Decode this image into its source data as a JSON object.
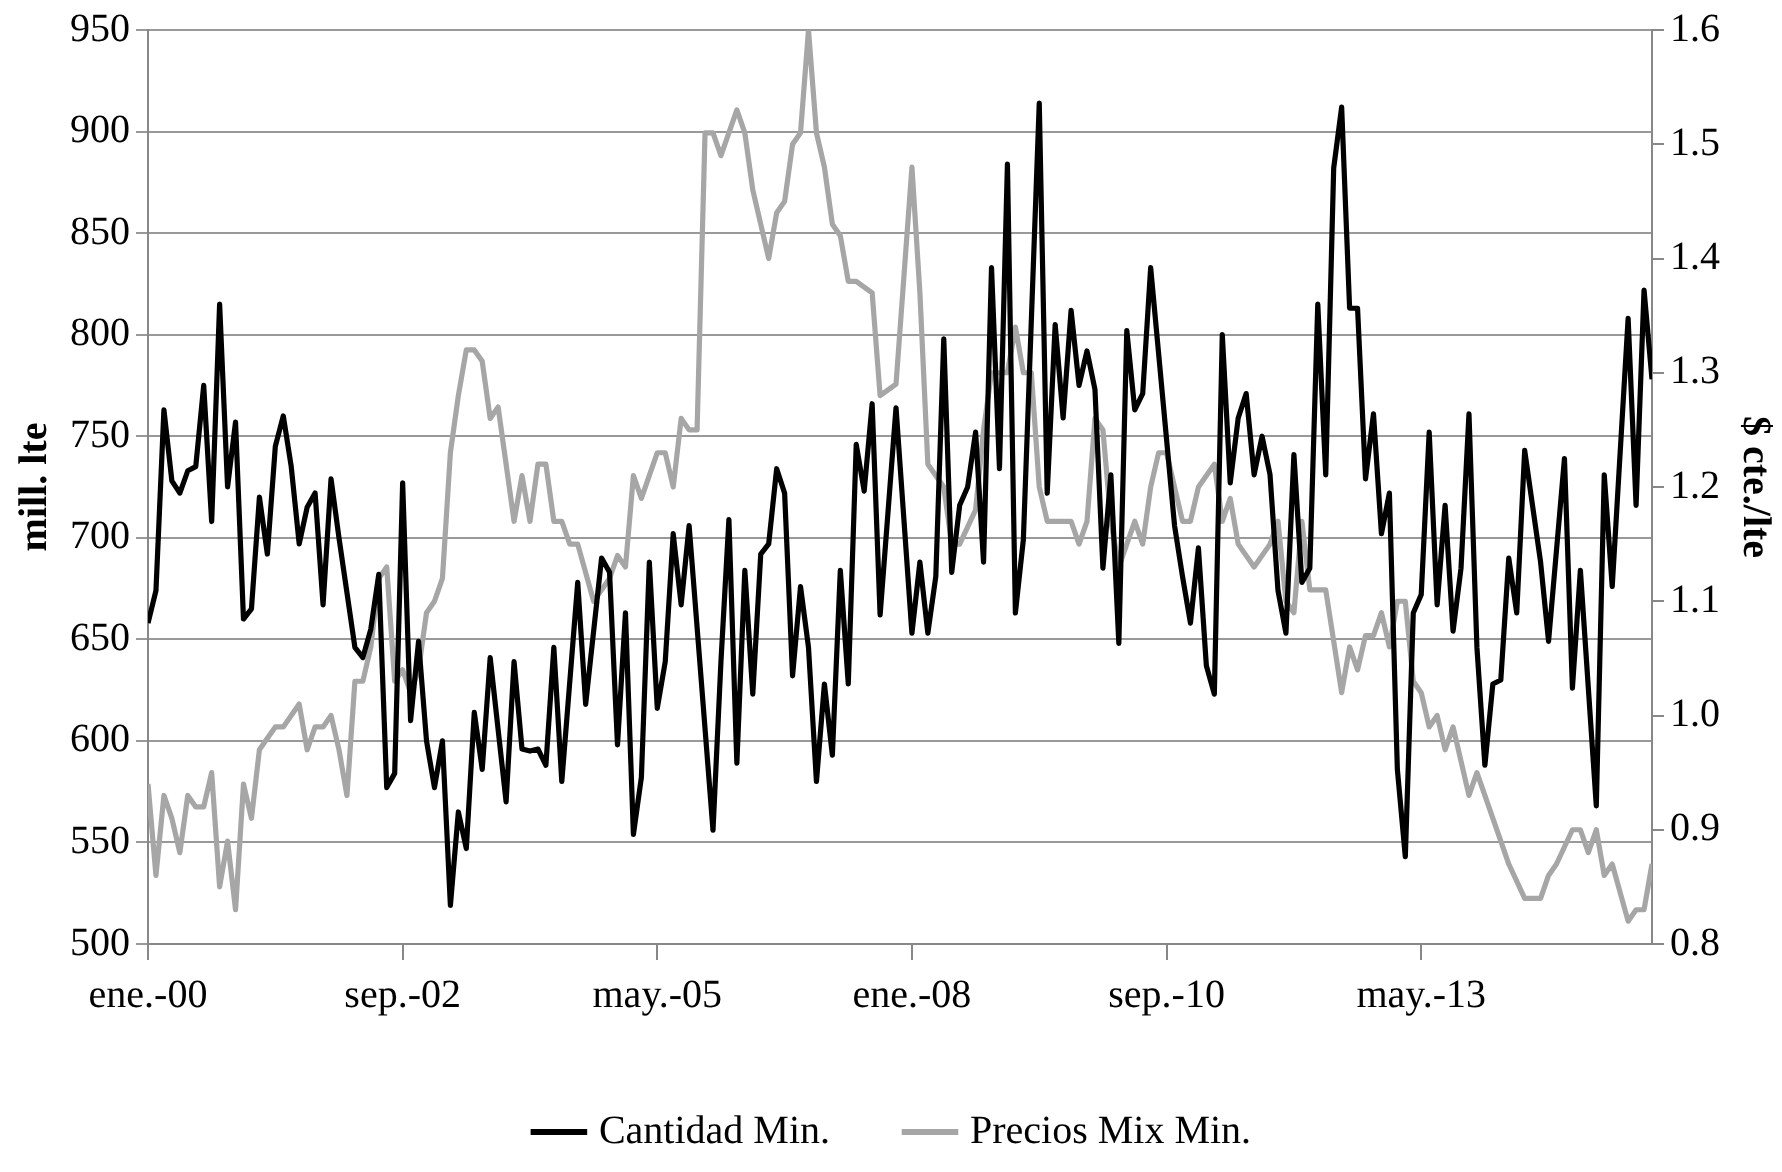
{
  "chart_data": {
    "type": "line",
    "ylabel": "mill. lte",
    "y2label": "$ cte./lte",
    "xlim": [
      "2000-01",
      "2015-10"
    ],
    "xticks": [
      {
        "value": "2000-01",
        "label": "ene.-00"
      },
      {
        "value": "2002-09",
        "label": "sep.-02"
      },
      {
        "value": "2005-05",
        "label": "may.-05"
      },
      {
        "value": "2008-01",
        "label": "ene.-08"
      },
      {
        "value": "2010-09",
        "label": "sep.-10"
      },
      {
        "value": "2013-05",
        "label": "may.-13"
      }
    ],
    "ylim": [
      500,
      950
    ],
    "yticks": [
      500,
      550,
      600,
      650,
      700,
      750,
      800,
      850,
      900,
      950
    ],
    "y2lim": [
      0.8,
      1.6
    ],
    "y2ticks": [
      0.8,
      0.9,
      {
        "value": 1,
        "label": "1.0"
      },
      1.1,
      1.2,
      1.3,
      1.4,
      1.5,
      1.6
    ],
    "grid": "y",
    "legend": "bottom",
    "series": [
      {
        "name": "Cantidad Min.",
        "color": "#000000",
        "x": [
          "2000-01",
          "2000-02",
          "2000-03",
          "2000-04",
          "2000-05",
          "2000-06",
          "2000-07",
          "2000-08",
          "2000-09",
          "2000-10",
          "2000-11",
          "2000-12",
          "2001-01",
          "2001-02",
          "2001-03",
          "2001-04",
          "2001-05",
          "2001-06",
          "2001-07",
          "2001-08",
          "2001-09",
          "2001-10",
          "2001-11",
          "2001-12",
          "2002-01",
          "2002-02",
          "2002-03",
          "2002-04",
          "2002-05",
          "2002-06",
          "2002-07",
          "2002-08",
          "2002-09",
          "2002-10",
          "2002-11",
          "2002-12",
          "2003-01",
          "2003-02",
          "2003-03",
          "2003-04",
          "2003-05",
          "2003-06",
          "2003-07",
          "2003-08",
          "2003-10",
          "2003-11",
          "2003-12",
          "2004-01",
          "2004-02",
          "2004-03",
          "2004-04",
          "2004-05",
          "2004-07",
          "2004-08",
          "2004-10",
          "2004-11",
          "2004-12",
          "2005-01",
          "2005-02",
          "2005-03",
          "2005-04",
          "2005-05",
          "2005-06",
          "2005-07",
          "2005-08",
          "2005-09",
          "2005-10",
          "2005-12",
          "2006-01",
          "2006-02",
          "2006-03",
          "2006-04",
          "2006-05",
          "2006-06",
          "2006-07",
          "2006-08",
          "2006-09",
          "2006-10",
          "2006-11",
          "2006-12",
          "2007-01",
          "2007-02",
          "2007-03",
          "2007-04",
          "2007-05",
          "2007-06",
          "2007-07",
          "2007-08",
          "2007-09",
          "2007-11",
          "2008-01",
          "2008-02",
          "2008-03",
          "2008-04",
          "2008-05",
          "2008-06",
          "2008-07",
          "2008-08",
          "2008-09",
          "2008-10",
          "2008-11",
          "2008-12",
          "2009-01",
          "2009-02",
          "2009-03",
          "2009-05",
          "2009-06",
          "2009-07",
          "2009-08",
          "2009-09",
          "2009-10",
          "2009-11",
          "2009-12",
          "2010-01",
          "2010-02",
          "2010-03",
          "2010-04",
          "2010-05",
          "2010-06",
          "2010-07",
          "2010-10",
          "2010-11",
          "2010-12",
          "2011-01",
          "2011-02",
          "2011-03",
          "2011-04",
          "2011-05",
          "2011-06",
          "2011-07",
          "2011-08",
          "2011-09",
          "2011-10",
          "2011-11",
          "2011-12",
          "2012-01",
          "2012-02",
          "2012-03",
          "2012-04",
          "2012-05",
          "2012-06",
          "2012-07",
          "2012-08",
          "2012-09",
          "2012-10",
          "2012-11",
          "2012-12",
          "2013-01",
          "2013-02",
          "2013-03",
          "2013-04",
          "2013-05",
          "2013-06",
          "2013-07",
          "2013-08",
          "2013-09",
          "2013-10",
          "2013-11",
          "2013-12",
          "2014-01",
          "2014-02",
          "2014-03",
          "2014-04",
          "2014-05",
          "2014-06",
          "2014-08",
          "2014-09",
          "2014-11",
          "2014-12",
          "2015-01",
          "2015-03",
          "2015-04",
          "2015-05",
          "2015-07",
          "2015-08",
          "2015-09",
          "2015-10"
        ],
        "values": [
          658,
          674,
          763,
          728,
          722,
          733,
          735,
          775,
          708,
          815,
          725,
          757,
          660,
          665,
          720,
          692,
          745,
          760,
          735,
          697,
          715,
          722,
          667,
          729,
          700,
          673,
          646,
          641,
          655,
          682,
          577,
          584,
          727,
          610,
          649,
          600,
          577,
          600,
          519,
          565,
          547,
          614,
          586,
          641,
          570,
          639,
          596,
          595,
          596,
          588,
          646,
          580,
          678,
          618,
          690,
          683,
          598,
          663,
          554,
          582,
          688,
          616,
          639,
          702,
          667,
          706,
          656,
          556,
          639,
          709,
          589,
          684,
          623,
          692,
          697,
          734,
          722,
          632,
          676,
          646,
          580,
          628,
          593,
          684,
          628,
          746,
          723,
          766,
          662,
          764,
          653,
          688,
          653,
          681,
          798,
          683,
          716,
          725,
          752,
          688,
          833,
          734,
          884,
          663,
          699,
          914,
          722,
          805,
          759,
          812,
          775,
          792,
          773,
          685,
          731,
          648,
          802,
          763,
          771,
          833,
          706,
          681,
          658,
          695,
          637,
          623,
          800,
          727,
          759,
          771,
          731,
          750,
          731,
          674,
          653,
          741,
          678,
          685,
          815,
          731,
          882,
          912,
          813,
          813,
          729,
          761,
          702,
          722,
          586,
          543,
          663,
          672,
          752,
          667,
          716,
          654,
          685,
          761,
          646,
          588,
          628,
          630,
          690,
          663,
          743,
          688,
          649,
          739,
          626,
          684,
          568,
          731,
          676,
          808,
          716,
          822,
          778
        ]
      },
      {
        "name": "Precios Mix Min.",
        "color": "#a6a6a6",
        "axis": "y2",
        "x": [
          "2000-01",
          "2000-02",
          "2000-03",
          "2000-04",
          "2000-05",
          "2000-06",
          "2000-07",
          "2000-08",
          "2000-09",
          "2000-10",
          "2000-11",
          "2000-12",
          "2001-01",
          "2001-02",
          "2001-03",
          "2001-04",
          "2001-05",
          "2001-06",
          "2001-07",
          "2001-08",
          "2001-09",
          "2001-10",
          "2001-11",
          "2001-12",
          "2002-01",
          "2002-02",
          "2002-03",
          "2002-04",
          "2002-05",
          "2002-06",
          "2002-07",
          "2002-08",
          "2002-09",
          "2002-10",
          "2002-11",
          "2002-12",
          "2003-01",
          "2003-02",
          "2003-03",
          "2003-04",
          "2003-05",
          "2003-06",
          "2003-07",
          "2003-08",
          "2003-09",
          "2003-11",
          "2003-12",
          "2004-01",
          "2004-02",
          "2004-03",
          "2004-04",
          "2004-05",
          "2004-06",
          "2004-07",
          "2004-09",
          "2004-11",
          "2004-12",
          "2005-01",
          "2005-02",
          "2005-03",
          "2005-05",
          "2005-06",
          "2005-07",
          "2005-08",
          "2005-09",
          "2005-10",
          "2005-11",
          "2005-12",
          "2006-01",
          "2006-03",
          "2006-04",
          "2006-05",
          "2006-07",
          "2006-08",
          "2006-09",
          "2006-10",
          "2006-11",
          "2006-12",
          "2007-01",
          "2007-02",
          "2007-03",
          "2007-04",
          "2007-05",
          "2007-06",
          "2007-08",
          "2007-09",
          "2007-11",
          "2008-01",
          "2008-02",
          "2008-03",
          "2008-05",
          "2008-06",
          "2008-07",
          "2008-09",
          "2008-10",
          "2008-11",
          "2009-01",
          "2009-02",
          "2009-03",
          "2009-04",
          "2009-05",
          "2009-06",
          "2009-08",
          "2009-09",
          "2009-10",
          "2009-11",
          "2009-12",
          "2010-01",
          "2010-02",
          "2010-03",
          "2010-05",
          "2010-06",
          "2010-07",
          "2010-08",
          "2010-09",
          "2010-11",
          "2010-12",
          "2011-01",
          "2011-03",
          "2011-04",
          "2011-05",
          "2011-06",
          "2011-08",
          "2011-10",
          "2011-11",
          "2011-12",
          "2012-01",
          "2012-02",
          "2012-03",
          "2012-05",
          "2012-07",
          "2012-08",
          "2012-09",
          "2012-10",
          "2012-11",
          "2012-12",
          "2013-01",
          "2013-02",
          "2013-03",
          "2013-04",
          "2013-05",
          "2013-06",
          "2013-07",
          "2013-08",
          "2013-09",
          "2013-11",
          "2013-12",
          "2014-03",
          "2014-04",
          "2014-06",
          "2014-08",
          "2014-09",
          "2014-10",
          "2014-12",
          "2015-01",
          "2015-02",
          "2015-03",
          "2015-04",
          "2015-05",
          "2015-07",
          "2015-08",
          "2015-09",
          "2015-10"
        ],
        "values": [
          0.94,
          0.86,
          0.93,
          0.91,
          0.88,
          0.93,
          0.92,
          0.92,
          0.95,
          0.85,
          0.89,
          0.83,
          0.94,
          0.91,
          0.97,
          0.98,
          0.99,
          0.99,
          1.0,
          1.01,
          0.97,
          0.99,
          0.99,
          1.0,
          0.97,
          0.93,
          1.03,
          1.03,
          1.06,
          1.12,
          1.13,
          1.03,
          1.04,
          1.02,
          1.04,
          1.09,
          1.1,
          1.12,
          1.23,
          1.28,
          1.32,
          1.32,
          1.31,
          1.26,
          1.27,
          1.17,
          1.21,
          1.17,
          1.22,
          1.22,
          1.17,
          1.17,
          1.15,
          1.15,
          1.1,
          1.12,
          1.14,
          1.13,
          1.21,
          1.19,
          1.23,
          1.23,
          1.2,
          1.26,
          1.25,
          1.25,
          1.51,
          1.51,
          1.49,
          1.53,
          1.51,
          1.46,
          1.4,
          1.44,
          1.45,
          1.5,
          1.51,
          1.6,
          1.51,
          1.48,
          1.43,
          1.42,
          1.38,
          1.38,
          1.37,
          1.28,
          1.29,
          1.48,
          1.37,
          1.22,
          1.2,
          1.15,
          1.15,
          1.18,
          1.25,
          1.3,
          1.3,
          1.34,
          1.3,
          1.3,
          1.2,
          1.17,
          1.17,
          1.17,
          1.15,
          1.17,
          1.26,
          1.25,
          1.17,
          1.13,
          1.17,
          1.15,
          1.2,
          1.23,
          1.23,
          1.17,
          1.17,
          1.2,
          1.22,
          1.17,
          1.19,
          1.15,
          1.13,
          1.15,
          1.17,
          1.1,
          1.09,
          1.17,
          1.11,
          1.11,
          1.02,
          1.06,
          1.04,
          1.07,
          1.07,
          1.09,
          1.06,
          1.1,
          1.1,
          1.03,
          1.02,
          0.99,
          1.0,
          0.97,
          0.99,
          0.93,
          0.95,
          0.89,
          0.87,
          0.84,
          0.84,
          0.86,
          0.87,
          0.9,
          0.9,
          0.88,
          0.9,
          0.86,
          0.87,
          0.82,
          0.83,
          0.83,
          0.87
        ]
      }
    ]
  }
}
